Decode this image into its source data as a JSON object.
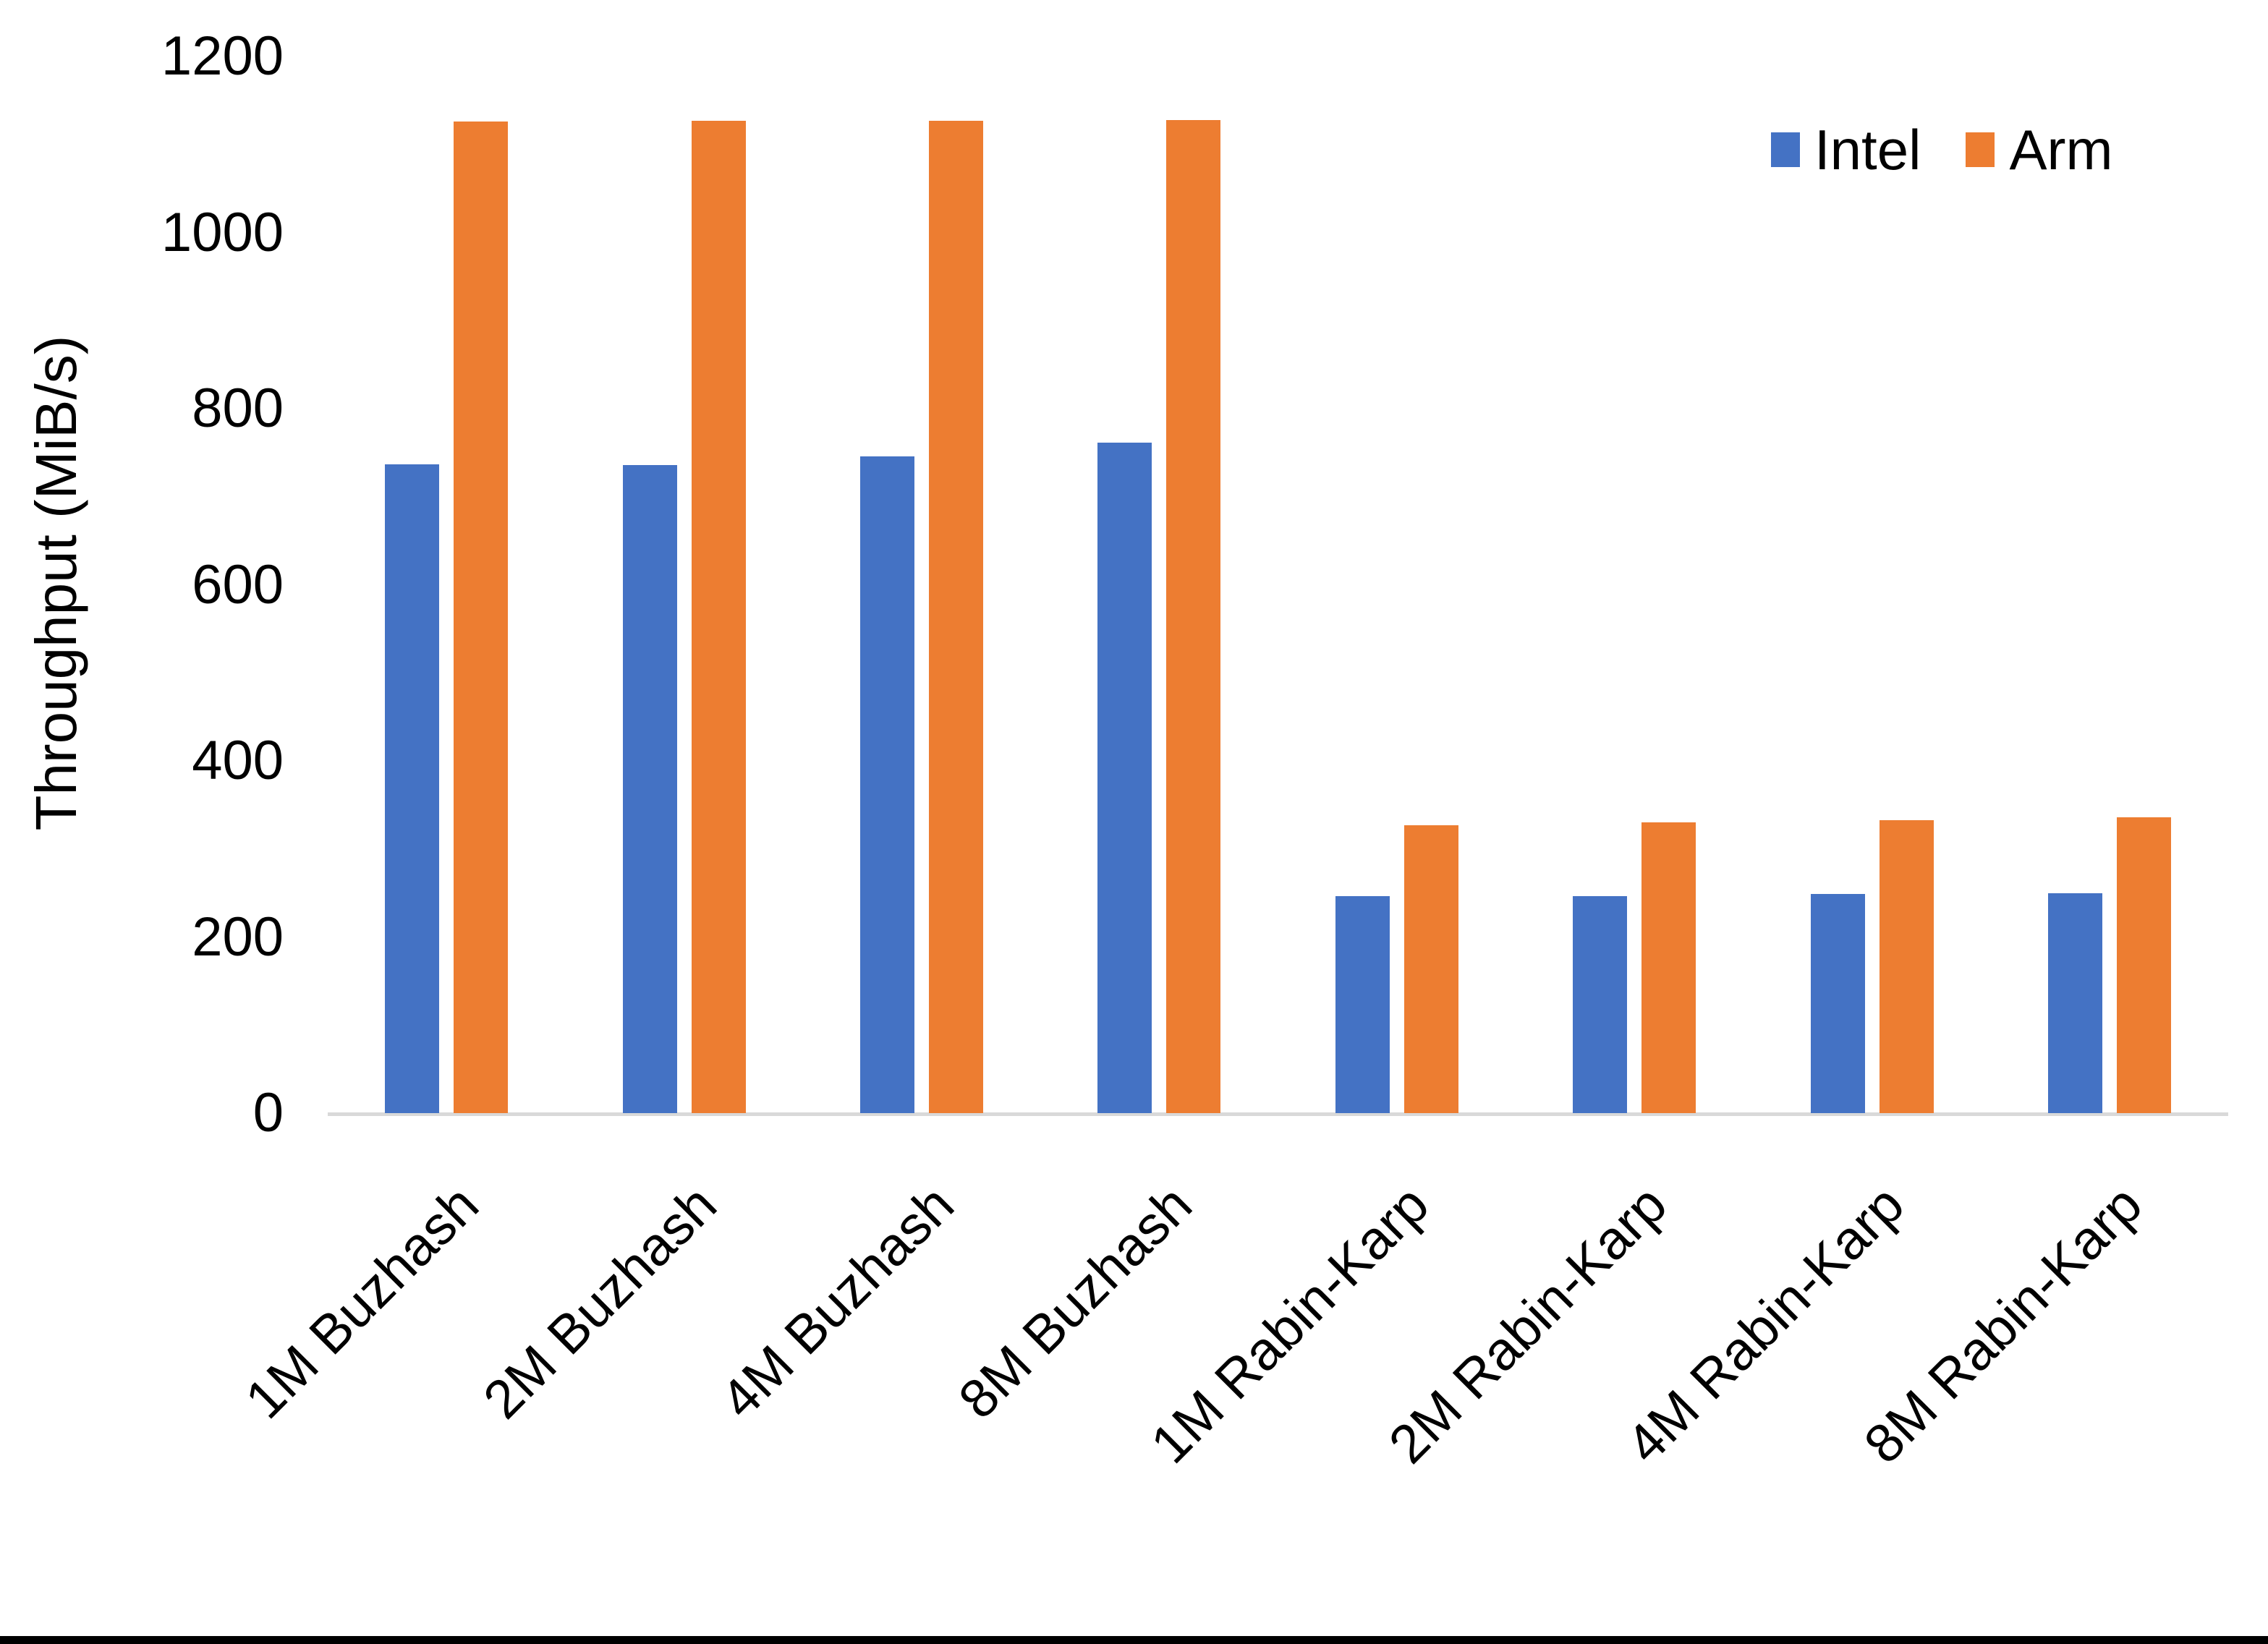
{
  "chart_data": {
    "type": "bar",
    "title": "",
    "xlabel": "",
    "ylabel": "Throughput (MiB/s)",
    "ylim": [
      0,
      1200
    ],
    "yticks": [
      0,
      200,
      400,
      600,
      800,
      1000,
      1200
    ],
    "grid": false,
    "legend_position": "top-right",
    "categories": [
      "1M Buzhash",
      "2M Buzhash",
      "4M Buzhash",
      "8M Buzhash",
      "1M Rabin-Karp",
      "2M Rabin-Karp",
      "4M Rabin-Karp",
      "8M Rabin-Karp"
    ],
    "series": [
      {
        "name": "Intel",
        "color": "#4472C4",
        "values": [
          737,
          736,
          746,
          761,
          246,
          246,
          249,
          250
        ]
      },
      {
        "name": "Arm",
        "color": "#ED7D31",
        "values": [
          1126,
          1127,
          1127,
          1128,
          327,
          330,
          333,
          336
        ]
      }
    ]
  },
  "colors": {
    "axis_line": "#d9d9d9",
    "text": "#000000",
    "bottom_border": "#000000"
  }
}
